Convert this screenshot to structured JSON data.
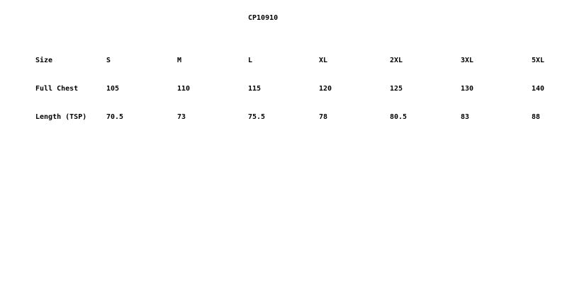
{
  "title": "CP10910",
  "rows": [
    {
      "label": "Size",
      "values": [
        "S",
        "M",
        "L",
        "XL",
        "2XL",
        "3XL",
        "5XL"
      ]
    },
    {
      "label": "Full Chest",
      "values": [
        "105",
        "110",
        "115",
        "120",
        "125",
        "130",
        "140"
      ]
    },
    {
      "label": "Length (TSP)",
      "values": [
        "70.5",
        "73",
        "75.5",
        "78",
        "80.5",
        "83",
        "88"
      ]
    }
  ]
}
